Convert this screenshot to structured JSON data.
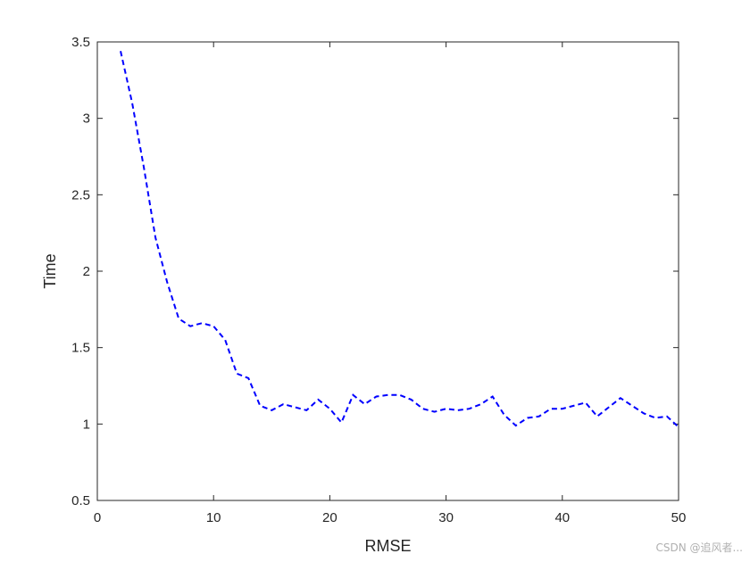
{
  "chart_data": {
    "type": "line",
    "xlabel": "RMSE",
    "ylabel": "Time",
    "xlim": [
      0,
      50
    ],
    "ylim": [
      0.5,
      3.5
    ],
    "xticks": [
      0,
      10,
      20,
      30,
      40,
      50
    ],
    "yticks": [
      0.5,
      1,
      1.5,
      2,
      2.5,
      3,
      3.5
    ],
    "xtick_labels": [
      "0",
      "10",
      "20",
      "30",
      "40",
      "50"
    ],
    "ytick_labels": [
      "0.5",
      "1",
      "1.5",
      "2",
      "2.5",
      "3",
      "3.5"
    ],
    "grid": false,
    "series": [
      {
        "color": "#0000ff",
        "line_style": "dashed",
        "x": [
          2,
          3,
          4,
          5,
          6,
          7,
          8,
          9,
          10,
          11,
          12,
          13,
          14,
          15,
          16,
          17,
          18,
          19,
          20,
          21,
          22,
          23,
          24,
          25,
          26,
          27,
          28,
          29,
          30,
          31,
          32,
          33,
          34,
          35,
          36,
          37,
          38,
          39,
          40,
          41,
          42,
          43,
          44,
          45,
          46,
          47,
          48,
          49,
          50
        ],
        "y": [
          3.44,
          3.1,
          2.68,
          2.22,
          1.93,
          1.69,
          1.64,
          1.66,
          1.64,
          1.55,
          1.33,
          1.3,
          1.12,
          1.09,
          1.13,
          1.11,
          1.09,
          1.16,
          1.1,
          1.01,
          1.19,
          1.13,
          1.18,
          1.19,
          1.19,
          1.16,
          1.1,
          1.08,
          1.1,
          1.09,
          1.1,
          1.13,
          1.18,
          1.06,
          0.99,
          1.04,
          1.05,
          1.1,
          1.1,
          1.12,
          1.14,
          1.05,
          1.11,
          1.17,
          1.12,
          1.07,
          1.04,
          1.05,
          0.98
        ]
      }
    ]
  },
  "watermark": "CSDN @追风者..."
}
